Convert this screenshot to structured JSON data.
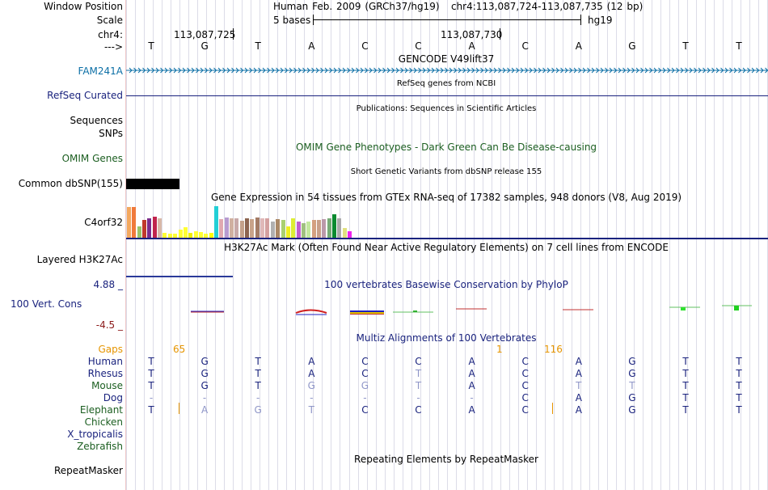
{
  "header": {
    "window_position_label": "Window Position",
    "window_position_value": "Human Feb. 2009 (GRCh37/hg19)   chr4:113,087,724-113,087,735 (12 bp)",
    "scale_label": "Scale",
    "scale_value": "5 bases",
    "scale_assembly": "hg19",
    "chr_label": "chr4:",
    "pos_a": "113,087,725",
    "pos_b": "113,087,730",
    "strand_label": "--->"
  },
  "bases": [
    "T",
    "G",
    "T",
    "A",
    "C",
    "C",
    "A",
    "C",
    "A",
    "G",
    "T",
    "T"
  ],
  "tracks": {
    "gencode_title": "GENCODE V49lift37",
    "gencode_gene": "FAM241A",
    "refseq_title": "RefSeq genes from NCBI",
    "refseq_label": "RefSeq Curated",
    "publications_title": "Publications: Sequences in Scientific Articles",
    "sequences_label": "Sequences",
    "snps_label": "SNPs",
    "omim_title": "OMIM Gene Phenotypes - Dark Green Can Be Disease-causing",
    "omim_label": "OMIM Genes",
    "dbsnp_title": "Short Genetic Variants from dbSNP release 155",
    "dbsnp_label": "Common dbSNP(155)",
    "gtex_title": "Gene Expression in 54 tissues from GTEx RNA-seq of 17382 samples, 948 donors (V8, Aug 2019)",
    "gtex_label": "C4orf32",
    "h3k27_title": "H3K27Ac Mark (Often Found Near Active Regulatory Elements) on 7 cell lines from ENCODE",
    "h3k27_label": "Layered H3K27Ac",
    "cons_title": "100 vertebrates Basewise Conservation by PhyloP",
    "cons_label": "100 Vert. Cons",
    "cons_max": "4.88 _",
    "cons_min": "-4.5 _",
    "multiz_title": "Multiz Alignments of 100 Vertebrates",
    "gaps_label": "Gaps",
    "gap_65": "65",
    "gap_1": "1",
    "gap_116": "116",
    "repeat_title": "Repeating Elements by RepeatMasker",
    "repeat_label": "RepeatMasker"
  },
  "species": [
    {
      "name": "Human",
      "bases": [
        "T",
        "G",
        "T",
        "A",
        "C",
        "C",
        "A",
        "C",
        "A",
        "G",
        "T",
        "T"
      ]
    },
    {
      "name": "Rhesus",
      "bases": [
        "T",
        "G",
        "T",
        "A",
        "C",
        "T",
        "A",
        "C",
        "A",
        "G",
        "T",
        "T"
      ]
    },
    {
      "name": "Mouse",
      "bases": [
        "T",
        "G",
        "T",
        "G",
        "G",
        "T",
        "A",
        "C",
        "T",
        "T",
        "T",
        "T"
      ]
    },
    {
      "name": "Dog",
      "bases": [
        "-",
        "-",
        "-",
        "-",
        "-",
        "-",
        "-",
        "C",
        "A",
        "G",
        "T",
        "T"
      ]
    },
    {
      "name": "Elephant",
      "bases": [
        "T",
        "A",
        "G",
        "T",
        "C",
        "C",
        "A",
        "C",
        "A",
        "G",
        "T",
        "T"
      ]
    },
    {
      "name": "Chicken",
      "bases": []
    },
    {
      "name": "X_tropicalis",
      "bases": []
    },
    {
      "name": "Zebrafish",
      "bases": []
    }
  ],
  "colors": {
    "track_title_blue": "#1a237e",
    "omim_green": "#1b5e20",
    "gaps_orange": "#e69500",
    "gencode_blue": "#0c6fa6"
  },
  "gtex_bars": [
    {
      "color": "#f4a85e",
      "value": 0.95
    },
    {
      "color": "#f07a3c",
      "value": 0.95
    },
    {
      "color": "#9ac36a",
      "value": 0.35
    },
    {
      "color": "#c0392b",
      "value": 0.55
    },
    {
      "color": "#7b2c8c",
      "value": 0.6
    },
    {
      "color": "#c0244d",
      "value": 0.66
    },
    {
      "color": "#d8b8a8",
      "value": 0.61
    },
    {
      "color": "#ffff33",
      "value": 0.15
    },
    {
      "color": "#ffff33",
      "value": 0.12
    },
    {
      "color": "#ffff33",
      "value": 0.12
    },
    {
      "color": "#ffff33",
      "value": 0.26
    },
    {
      "color": "#ffff33",
      "value": 0.32
    },
    {
      "color": "#eded00",
      "value": 0.14
    },
    {
      "color": "#ffff33",
      "value": 0.2
    },
    {
      "color": "#ffff33",
      "value": 0.17
    },
    {
      "color": "#ffff33",
      "value": 0.12
    },
    {
      "color": "#ffff00",
      "value": 0.14
    },
    {
      "color": "#22cfd6",
      "value": 0.97
    },
    {
      "color": "#e0a8b0",
      "value": 0.58
    },
    {
      "color": "#b79bd0",
      "value": 0.62
    },
    {
      "color": "#d0b0a0",
      "value": 0.6
    },
    {
      "color": "#c8a9a9",
      "value": 0.6
    },
    {
      "color": "#c4a08a",
      "value": 0.52
    },
    {
      "color": "#8c6450",
      "value": 0.6
    },
    {
      "color": "#c8a38a",
      "value": 0.58
    },
    {
      "color": "#a37b66",
      "value": 0.62
    },
    {
      "color": "#e0b8b8",
      "value": 0.6
    },
    {
      "color": "#d4a0a0",
      "value": 0.6
    },
    {
      "color": "#b0b0b0",
      "value": 0.5
    },
    {
      "color": "#aa8866",
      "value": 0.58
    },
    {
      "color": "#aad070",
      "value": 0.55
    },
    {
      "color": "#eeee22",
      "value": 0.35
    },
    {
      "color": "#ddee33",
      "value": 0.6
    },
    {
      "color": "#c060d0",
      "value": 0.5
    },
    {
      "color": "#a0c080",
      "value": 0.45
    },
    {
      "color": "#c4e8a0",
      "value": 0.5
    },
    {
      "color": "#d4a080",
      "value": 0.55
    },
    {
      "color": "#c9a089",
      "value": 0.55
    },
    {
      "color": "#bb99aa",
      "value": 0.58
    },
    {
      "color": "#77aa77",
      "value": 0.6
    },
    {
      "color": "#0a8a30",
      "value": 0.72
    },
    {
      "color": "#aaaaaa",
      "value": 0.6
    },
    {
      "color": "#e0e080",
      "value": 0.3
    },
    {
      "color": "#ee22ee",
      "value": 0.2
    }
  ]
}
